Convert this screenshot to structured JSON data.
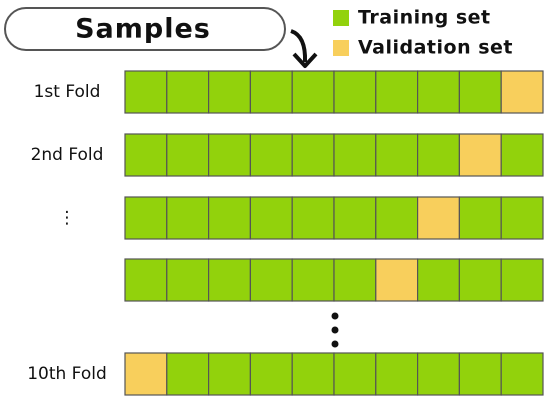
{
  "header": {
    "title": "Samples"
  },
  "legend": [
    {
      "label": "Training set",
      "color": "#92d20c"
    },
    {
      "label": "Validation set",
      "color": "#f8cf5c"
    }
  ],
  "cells_per_fold": 10,
  "folds": [
    {
      "label": "1st Fold",
      "validation_index": 9
    },
    {
      "label": "2nd Fold",
      "validation_index": 8
    },
    {
      "label": "⋮",
      "validation_index": 7
    },
    {
      "validation_index": 6
    },
    {
      "label": "10th Fold",
      "validation_index": 0
    }
  ]
}
